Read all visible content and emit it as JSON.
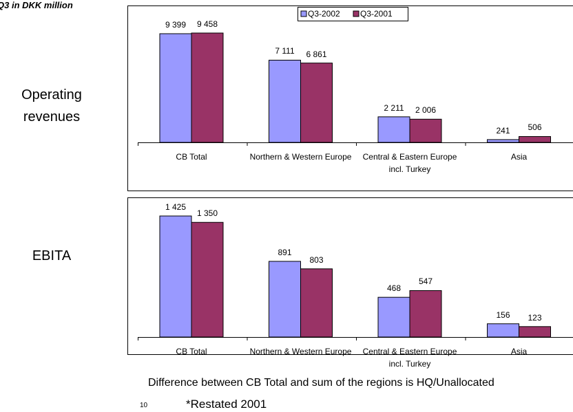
{
  "subtitle": "Q3 in DKK million",
  "footnote": "Difference between CB Total and sum of the regions is HQ/Unallocated",
  "page_number": "10",
  "note": "*Restated 2001",
  "chart_data": [
    {
      "type": "bar",
      "title": "Operating revenues",
      "legend": "top",
      "categories": [
        "CB Total",
        "Northern & Western Europe",
        "Central & Eastern Europe incl. Turkey",
        "Asia"
      ],
      "series": [
        {
          "name": "Q3-2002",
          "color": "#9999ff",
          "values": [
            9399,
            7111,
            2211,
            241
          ],
          "value_labels": [
            "9 399",
            "7 111",
            "2 211",
            "241"
          ]
        },
        {
          "name": "Q3-2001",
          "color": "#993366",
          "values": [
            9458,
            6861,
            2006,
            506
          ],
          "value_labels": [
            "9 458",
            "6 861",
            "2 006",
            "506"
          ]
        }
      ]
    },
    {
      "type": "bar",
      "title": "EBITA",
      "categories": [
        "CB Total",
        "Northern & Western Europe",
        "Central & Eastern Europe incl. Turkey",
        "Asia"
      ],
      "series": [
        {
          "name": "Q3-2002",
          "color": "#9999ff",
          "values": [
            1425,
            891,
            468,
            156
          ],
          "value_labels": [
            "1 425",
            "891",
            "468",
            "156"
          ]
        },
        {
          "name": "Q3-2001",
          "color": "#993366",
          "values": [
            1350,
            803,
            547,
            123
          ],
          "value_labels": [
            "1 350",
            "803",
            "547",
            "123"
          ]
        }
      ]
    }
  ]
}
